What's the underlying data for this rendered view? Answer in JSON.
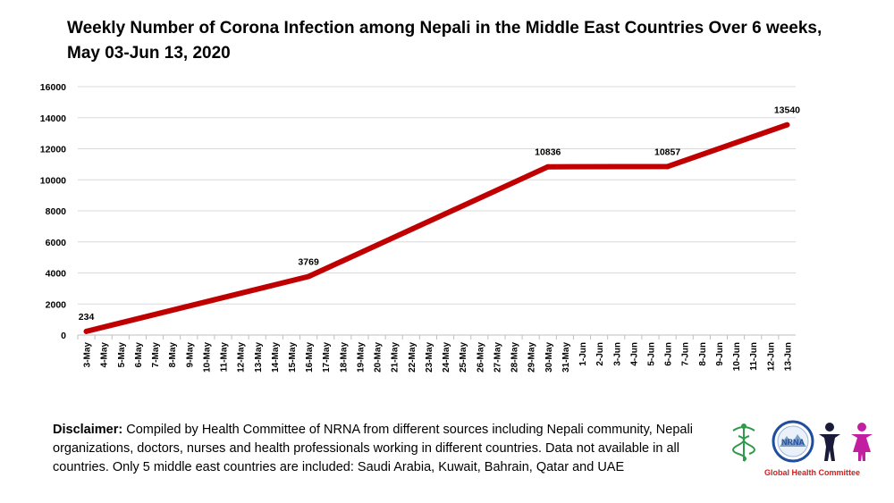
{
  "chart_data": {
    "type": "line",
    "title_line1": "Weekly Number of Corona Infection among Nepali in the Middle East Countries Over 6 weeks,",
    "title_line2": "May 03-Jun 13, 2020",
    "categories": [
      "3-May",
      "4-May",
      "5-May",
      "6-May",
      "7-May",
      "8-May",
      "9-May",
      "10-May",
      "11-May",
      "12-May",
      "13-May",
      "14-May",
      "15-May",
      "16-May",
      "17-May",
      "18-May",
      "19-May",
      "20-May",
      "21-May",
      "22-May",
      "23-May",
      "24-May",
      "25-May",
      "26-May",
      "27-May",
      "28-May",
      "29-May",
      "30-May",
      "31-May",
      "1-Jun",
      "2-Jun",
      "3-Jun",
      "4-Jun",
      "5-Jun",
      "6-Jun",
      "7-Jun",
      "8-Jun",
      "9-Jun",
      "10-Jun",
      "11-Jun",
      "12-Jun",
      "13-Jun"
    ],
    "series": [
      {
        "points": [
          {
            "x": "3-May",
            "y": 234
          },
          {
            "x": "16-May",
            "y": 3769
          },
          {
            "x": "30-May",
            "y": 10836
          },
          {
            "x": "6-Jun",
            "y": 10857
          },
          {
            "x": "13-Jun",
            "y": 13540
          }
        ],
        "color": "#c00000"
      }
    ],
    "data_labels": [
      "234",
      "3769",
      "10836",
      "10857",
      "13540"
    ],
    "yticks": [
      "0",
      "2000",
      "4000",
      "6000",
      "8000",
      "10000",
      "12000",
      "14000",
      "16000"
    ],
    "ylim": [
      0,
      16000
    ],
    "grid": true,
    "legend": "none"
  },
  "disclaimer": {
    "heading": "Disclaimer:",
    "text": " Compiled by Health Committee of NRNA from different sources including Nepali community, Nepali organizations, doctors, nurses and health professionals  working in different  countries. Data not available in all countries. Only 5 middle east countries are included: Saudi Arabia, Kuwait, Bahrain, Qatar and UAE"
  },
  "logo": {
    "badge_text": "NRNA",
    "caption": "Global Health Committee",
    "colors": {
      "caduceus": "#2e9a4a",
      "badge": "#1f4e9c",
      "figure_man": "#1a1a3a",
      "figure_woman": "#c21fa0"
    }
  }
}
